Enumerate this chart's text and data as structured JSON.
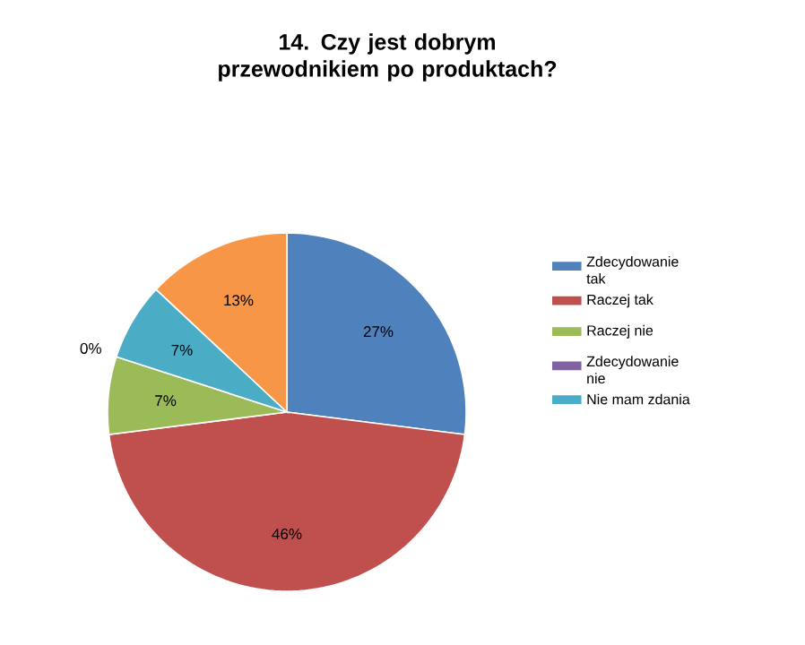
{
  "chart_data": {
    "type": "pie",
    "title": "14. Czy jest dobrym przewodnikiem po produktach?",
    "categories": [
      "Zdecydowanie tak",
      "Raczej tak",
      "Raczej nie",
      "Zdecydowanie nie",
      "Nie mam  zdania",
      null
    ],
    "values": [
      27,
      46,
      7,
      0,
      7,
      13
    ],
    "value_labels": [
      "27%",
      "46%",
      "7%",
      "0%",
      "7%",
      "13%"
    ],
    "colors": [
      "#4f81bd",
      "#c0504d",
      "#9bbb59",
      "#8064a2",
      "#4bacc6",
      "#f79646"
    ],
    "legend": "right"
  }
}
